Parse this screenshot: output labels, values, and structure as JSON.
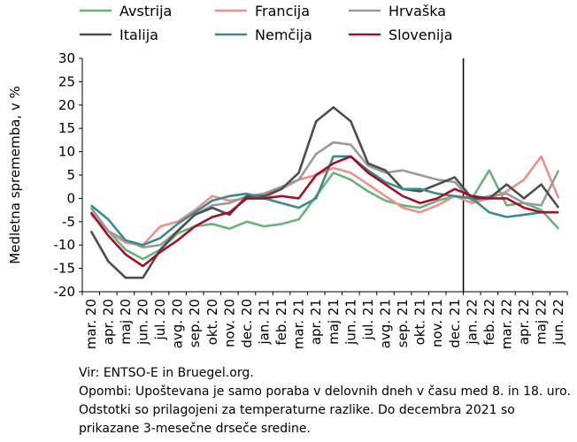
{
  "chart_data": {
    "type": "line",
    "ylabel": "Medletna sprememba, v %",
    "ylim": [
      -20,
      30
    ],
    "yticks": [
      30,
      25,
      20,
      15,
      10,
      5,
      0,
      -5,
      -10,
      -15,
      -20
    ],
    "categories": [
      "mar. 20",
      "apr. 20",
      "maj 20",
      "jun. 20",
      "jul. 20",
      "avg. 20",
      "sep. 20",
      "okt. 20",
      "nov. 20",
      "dec. 20",
      "jan. 21",
      "feb. 21",
      "mar. 21",
      "apr. 21",
      "maj 21",
      "jun. 21",
      "jul. 21",
      "avg. 21",
      "sep. 21",
      "okt. 21",
      "nov. 21",
      "dec. 21",
      "jan. 22",
      "feb. 22",
      "mar. 22",
      "apr. 22",
      "maj 22",
      "jun. 22"
    ],
    "vertical_line_at": "dec. 21",
    "legend_position": "top",
    "series": [
      {
        "name": "Avstrija",
        "color": "#6ab27a",
        "values": [
          -2,
          -7,
          -11,
          -13,
          -11,
          -7.5,
          -6,
          -5.5,
          -6.5,
          -5,
          -6,
          -5.5,
          -4.5,
          0.5,
          5.5,
          4,
          1.5,
          -0.5,
          -1.5,
          -2,
          -0.5,
          0.5,
          0,
          6,
          -1.5,
          -1,
          -2.5,
          -6.5
        ]
      },
      {
        "name": "Francija",
        "color": "#e8928e",
        "values": [
          -3.5,
          -7,
          -9.5,
          -10,
          -6,
          -5,
          -2.5,
          0.5,
          -0.5,
          0,
          0,
          2,
          4,
          5,
          6.5,
          5.5,
          3,
          0.5,
          -2,
          -3,
          -1.5,
          0.5,
          -1,
          0,
          1.5,
          4,
          9,
          0
        ]
      },
      {
        "name": "Hrvaška",
        "color": "#9a9a9a",
        "values": [
          -2,
          -7,
          -9,
          -10.5,
          -10,
          -7,
          -3.5,
          -1.5,
          -1,
          0.5,
          1,
          2.5,
          4,
          9.5,
          12,
          11.5,
          7,
          5.5,
          6,
          5,
          4,
          3.5,
          -0.5,
          0.5,
          1,
          -1,
          -1.5,
          6
        ]
      },
      {
        "name": "Italija",
        "color": "#4d4d4d",
        "values": [
          -7,
          -13.5,
          -17,
          -17,
          -11,
          -7,
          -3.5,
          -2,
          -3.5,
          0.5,
          0.5,
          2,
          5.5,
          16.5,
          19.5,
          16.5,
          7.5,
          6,
          2,
          1.5,
          3,
          4.5,
          0,
          0,
          3,
          0,
          3,
          -2
        ]
      },
      {
        "name": "Nemčija",
        "color": "#3b8b8b",
        "values": [
          -1.5,
          -4.5,
          -9,
          -10,
          -8.5,
          -5.5,
          -3,
          -0.5,
          0.5,
          1,
          0,
          -1,
          -2,
          0,
          9,
          9,
          6,
          3.5,
          2,
          2,
          1,
          0.5,
          0,
          -3,
          -4,
          -3.5,
          -3,
          -3
        ]
      },
      {
        "name": "Slovenija",
        "color": "#a0102a",
        "values": [
          -3,
          -8,
          -12,
          -14.5,
          -11.5,
          -9,
          -6,
          -4,
          -3,
          0,
          0,
          0.5,
          0,
          5,
          7.5,
          9,
          5.5,
          3,
          0.5,
          -1,
          0,
          2,
          0.5,
          0,
          0,
          -2,
          -3,
          -3
        ]
      }
    ]
  },
  "notes": {
    "source": "Vir: ENTSO-E in Bruegel.org.",
    "remarks": "Opombi: Upoštevana je samo poraba v delovnih dneh v času med 8. in 18. uro. Odstotki so prilagojeni za temperaturne razlike. Do decembra 2021 so prikazane 3-mesečne drseče sredine."
  }
}
